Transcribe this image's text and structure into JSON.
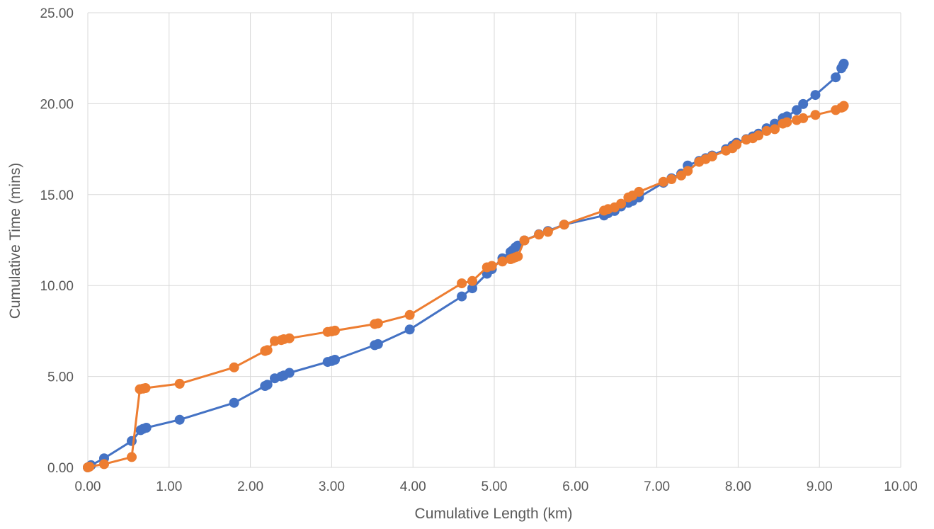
{
  "chart_data": {
    "type": "scatter",
    "title": "",
    "xlabel": "Cumulative Length (km)",
    "ylabel": "Cumulative Time (mins)",
    "xlim": [
      0,
      10
    ],
    "ylim": [
      0,
      25
    ],
    "xticks": [
      "0.00",
      "1.00",
      "2.00",
      "3.00",
      "4.00",
      "5.00",
      "6.00",
      "7.00",
      "8.00",
      "9.00",
      "10.00"
    ],
    "yticks": [
      "0.00",
      "5.00",
      "10.00",
      "15.00",
      "20.00",
      "25.00"
    ],
    "grid": true,
    "legend": "none",
    "series": [
      {
        "color": "#4472C4",
        "points": [
          [
            0.0,
            0.0
          ],
          [
            0.02,
            0.05
          ],
          [
            0.04,
            0.12
          ],
          [
            0.2,
            0.5
          ],
          [
            0.54,
            1.45
          ],
          [
            0.65,
            2.05
          ],
          [
            0.68,
            2.12
          ],
          [
            0.72,
            2.18
          ],
          [
            1.13,
            2.62
          ],
          [
            1.8,
            3.55
          ],
          [
            2.18,
            4.48
          ],
          [
            2.21,
            4.55
          ],
          [
            2.3,
            4.9
          ],
          [
            2.38,
            5.0
          ],
          [
            2.41,
            5.05
          ],
          [
            2.48,
            5.2
          ],
          [
            2.95,
            5.8
          ],
          [
            3.0,
            5.85
          ],
          [
            3.04,
            5.92
          ],
          [
            3.53,
            6.72
          ],
          [
            3.57,
            6.78
          ],
          [
            3.96,
            7.58
          ],
          [
            4.6,
            9.4
          ],
          [
            4.73,
            9.85
          ],
          [
            4.91,
            10.65
          ],
          [
            4.97,
            10.9
          ],
          [
            5.1,
            11.5
          ],
          [
            5.2,
            11.85
          ],
          [
            5.23,
            11.95
          ],
          [
            5.26,
            12.1
          ],
          [
            5.29,
            12.2
          ],
          [
            5.37,
            12.48
          ],
          [
            5.55,
            12.82
          ],
          [
            5.66,
            13.0
          ],
          [
            5.86,
            13.35
          ],
          [
            6.35,
            13.85
          ],
          [
            6.4,
            13.98
          ],
          [
            6.48,
            14.1
          ],
          [
            6.56,
            14.35
          ],
          [
            6.65,
            14.55
          ],
          [
            6.7,
            14.65
          ],
          [
            6.78,
            14.85
          ],
          [
            7.08,
            15.65
          ],
          [
            7.18,
            15.9
          ],
          [
            7.3,
            16.15
          ],
          [
            7.38,
            16.6
          ],
          [
            7.52,
            16.85
          ],
          [
            7.6,
            17.0
          ],
          [
            7.68,
            17.15
          ],
          [
            7.85,
            17.5
          ],
          [
            7.93,
            17.7
          ],
          [
            7.98,
            17.85
          ],
          [
            8.1,
            18.05
          ],
          [
            8.18,
            18.2
          ],
          [
            8.25,
            18.35
          ],
          [
            8.35,
            18.65
          ],
          [
            8.45,
            18.9
          ],
          [
            8.55,
            19.2
          ],
          [
            8.6,
            19.3
          ],
          [
            8.72,
            19.65
          ],
          [
            8.8,
            19.98
          ],
          [
            8.95,
            20.48
          ],
          [
            9.2,
            21.45
          ],
          [
            9.27,
            21.95
          ],
          [
            9.29,
            22.1
          ],
          [
            9.3,
            22.2
          ]
        ]
      },
      {
        "color": "#ED7D31",
        "points": [
          [
            0.0,
            0.0
          ],
          [
            0.02,
            0.04
          ],
          [
            0.2,
            0.18
          ],
          [
            0.54,
            0.57
          ],
          [
            0.64,
            4.3
          ],
          [
            0.68,
            4.33
          ],
          [
            0.71,
            4.36
          ],
          [
            1.13,
            4.6
          ],
          [
            1.8,
            5.5
          ],
          [
            2.18,
            6.4
          ],
          [
            2.21,
            6.45
          ],
          [
            2.3,
            6.95
          ],
          [
            2.38,
            7.0
          ],
          [
            2.41,
            7.05
          ],
          [
            2.48,
            7.1
          ],
          [
            2.95,
            7.45
          ],
          [
            3.0,
            7.48
          ],
          [
            3.04,
            7.52
          ],
          [
            3.53,
            7.88
          ],
          [
            3.57,
            7.92
          ],
          [
            3.96,
            8.38
          ],
          [
            4.6,
            10.12
          ],
          [
            4.73,
            10.25
          ],
          [
            4.91,
            11.0
          ],
          [
            4.97,
            11.08
          ],
          [
            5.1,
            11.32
          ],
          [
            5.2,
            11.45
          ],
          [
            5.23,
            11.5
          ],
          [
            5.26,
            11.55
          ],
          [
            5.29,
            11.6
          ],
          [
            5.37,
            12.48
          ],
          [
            5.55,
            12.8
          ],
          [
            5.66,
            12.95
          ],
          [
            5.86,
            13.35
          ],
          [
            6.35,
            14.12
          ],
          [
            6.4,
            14.2
          ],
          [
            6.48,
            14.3
          ],
          [
            6.56,
            14.5
          ],
          [
            6.65,
            14.85
          ],
          [
            6.7,
            14.95
          ],
          [
            6.78,
            15.15
          ],
          [
            7.08,
            15.7
          ],
          [
            7.18,
            15.85
          ],
          [
            7.3,
            16.05
          ],
          [
            7.38,
            16.3
          ],
          [
            7.52,
            16.8
          ],
          [
            7.6,
            16.95
          ],
          [
            7.68,
            17.1
          ],
          [
            7.85,
            17.42
          ],
          [
            7.93,
            17.55
          ],
          [
            7.98,
            17.75
          ],
          [
            8.1,
            18.02
          ],
          [
            8.18,
            18.1
          ],
          [
            8.25,
            18.25
          ],
          [
            8.35,
            18.5
          ],
          [
            8.45,
            18.6
          ],
          [
            8.55,
            18.9
          ],
          [
            8.6,
            18.98
          ],
          [
            8.72,
            19.1
          ],
          [
            8.8,
            19.2
          ],
          [
            8.95,
            19.38
          ],
          [
            9.2,
            19.65
          ],
          [
            9.27,
            19.78
          ],
          [
            9.29,
            19.82
          ],
          [
            9.3,
            19.88
          ]
        ]
      }
    ]
  }
}
